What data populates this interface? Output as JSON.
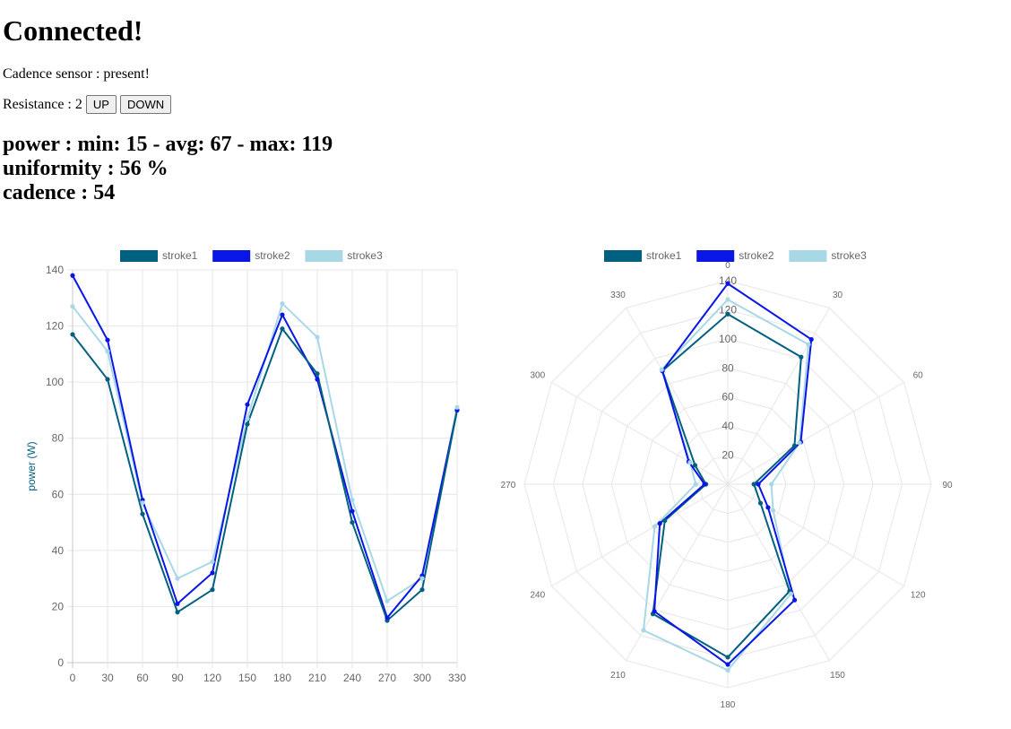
{
  "heading": "Connected!",
  "cadence_sensor": {
    "label": "Cadence sensor : ",
    "value": "present!"
  },
  "resistance": {
    "label": "Resistance : ",
    "value": "2",
    "up_label": "UP",
    "down_label": "DOWN"
  },
  "stats": {
    "power": "power : min: 15 - avg: 67 - max: 119",
    "uniformity": "uniformity : 56 %",
    "cadence": "cadence : 54"
  },
  "colors": {
    "stroke1": "#006080",
    "stroke2": "#0a16e6",
    "stroke3": "#a8d8e6"
  },
  "chart_data": [
    {
      "type": "line",
      "title": "",
      "xlabel": "",
      "ylabel": "power (W)",
      "x": [
        0,
        30,
        60,
        90,
        120,
        150,
        180,
        210,
        240,
        270,
        300,
        330
      ],
      "x_tick_labels": [
        "0",
        "30",
        "60",
        "90",
        "120",
        "150",
        "180",
        "210",
        "240",
        "270",
        "300",
        "330"
      ],
      "y_ticks": [
        "0",
        "20",
        "40",
        "60",
        "80",
        "100",
        "120",
        "140"
      ],
      "ylim": [
        0,
        140
      ],
      "grid": true,
      "legend": "top",
      "series": [
        {
          "name": "stroke1",
          "color": "#006080",
          "values": [
            117,
            101,
            53,
            18,
            26,
            85,
            119,
            103,
            50,
            15,
            26,
            90
          ]
        },
        {
          "name": "stroke2",
          "color": "#0a16e6",
          "values": [
            138,
            115,
            58,
            21,
            32,
            92,
            124,
            101,
            54,
            16,
            31,
            90
          ]
        },
        {
          "name": "stroke3",
          "color": "#a8d8e6",
          "values": [
            127,
            111,
            57,
            30,
            36,
            87,
            128,
            116,
            58,
            22,
            30,
            91
          ]
        }
      ]
    },
    {
      "type": "radar",
      "title": "",
      "angle_labels": [
        "0",
        "30",
        "60",
        "90",
        "120",
        "150",
        "180",
        "210",
        "240",
        "270",
        "300",
        "330"
      ],
      "r_ticks": [
        "20",
        "40",
        "60",
        "80",
        "100",
        "120",
        "140"
      ],
      "rlim": [
        0,
        140
      ],
      "grid": true,
      "legend": "top",
      "series": [
        {
          "name": "stroke1",
          "color": "#006080",
          "values": [
            117,
            101,
            53,
            18,
            26,
            85,
            119,
            103,
            50,
            15,
            26,
            90
          ]
        },
        {
          "name": "stroke2",
          "color": "#0a16e6",
          "values": [
            138,
            115,
            58,
            21,
            32,
            92,
            124,
            101,
            54,
            16,
            31,
            90
          ]
        },
        {
          "name": "stroke3",
          "color": "#a8d8e6",
          "values": [
            127,
            111,
            57,
            30,
            36,
            87,
            128,
            116,
            58,
            22,
            30,
            91
          ]
        }
      ]
    }
  ]
}
